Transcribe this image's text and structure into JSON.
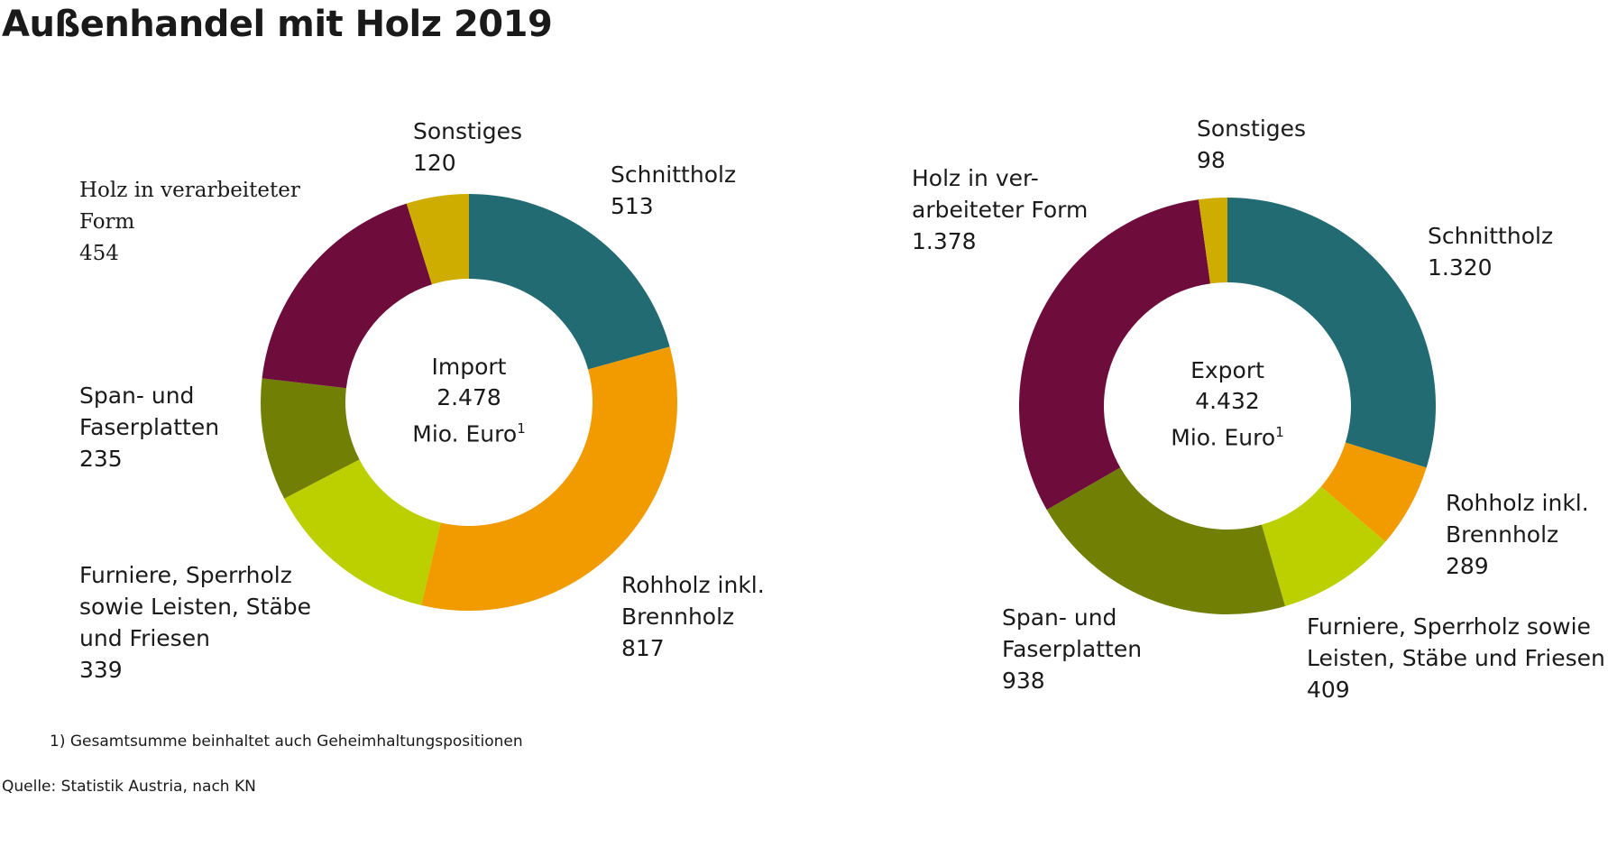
{
  "title": "Außenhandel mit Holz 2019",
  "footnote": "1) Gesamtsumme beinhaltet auch Geheimhaltungspositionen",
  "source": "Quelle: Statistik Austria, nach KN",
  "chart_data": [
    {
      "type": "pie",
      "center_label": "Import",
      "total": {
        "value": 2478,
        "label": "2.478"
      },
      "unit": "Mio. Euro",
      "footnote_mark": "1",
      "categories": [
        "Schnittholz",
        "Rohholz inkl.\nBrennholz",
        "Furniere, Sperrholz\nsowie Leisten, Stäbe\nund Friesen",
        "Span- und\nFaserplatten",
        "Holz in verarbeiteter\nForm",
        "Sonstiges"
      ],
      "values": [
        513,
        817,
        339,
        235,
        454,
        120
      ],
      "value_labels": [
        "513",
        "817",
        "339",
        "235",
        "454",
        "120"
      ],
      "colors": [
        "#226b73",
        "#f29b00",
        "#bcd000",
        "#718005",
        "#6e0c3c",
        "#cfad00"
      ]
    },
    {
      "type": "pie",
      "center_label": "Export",
      "total": {
        "value": 4432,
        "label": "4.432"
      },
      "unit": "Mio. Euro",
      "footnote_mark": "1",
      "categories": [
        "Schnittholz",
        "Rohholz inkl.\nBrennholz",
        "Furniere, Sperrholz sowie\nLeisten, Stäbe und Friesen",
        "Span- und\nFaserplatten",
        "Holz in ver-\narbeiteter Form",
        "Sonstiges"
      ],
      "values": [
        1320,
        289,
        409,
        938,
        1378,
        98
      ],
      "value_labels": [
        "1.320",
        "289",
        "409",
        "938",
        "1.378",
        "98"
      ],
      "colors": [
        "#226b73",
        "#f29b00",
        "#bcd000",
        "#718005",
        "#6e0c3c",
        "#cfad00"
      ]
    }
  ]
}
